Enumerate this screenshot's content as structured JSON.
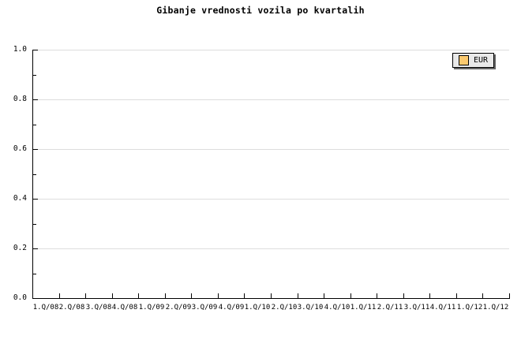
{
  "title": "Gibanje vrednosti vozila po kvartalih",
  "legend": {
    "entries": [
      {
        "label": "EUR",
        "swatch_color": "#fbc96f"
      }
    ]
  },
  "colors": {
    "axis": "#000000",
    "grid": "#dddddd",
    "legend_bg": "#e9e9e9",
    "legend_shadow": "#666666",
    "swatch": "#fbc96f",
    "background": "#ffffff",
    "text": "#000000"
  },
  "chart_data": {
    "type": "line",
    "title": "Gibanje vrednosti vozila po kvartalih",
    "xlabel": "",
    "ylabel": "",
    "ylim": [
      0.0,
      1.0
    ],
    "y_major_step": 0.2,
    "y_minor_step": 0.1,
    "y_tick_labels": [
      "0.0",
      "0.2",
      "0.4",
      "0.6",
      "0.8",
      "1.0"
    ],
    "x_tick_labels": [
      "1.Q/08",
      "2.Q/08",
      "3.Q/08",
      "4.Q/08",
      "1.Q/09",
      "2.Q/09",
      "3.Q/09",
      "4.Q/09",
      "1.Q/10",
      "2.Q/10",
      "3.Q/10",
      "4.Q/10",
      "1.Q/11",
      "2.Q/11",
      "3.Q/11",
      "4.Q/11",
      "1.Q/12",
      "1.Q/12"
    ],
    "grid": "horizontal",
    "legend_position": "top-right",
    "series": [
      {
        "name": "EUR",
        "values": []
      }
    ]
  }
}
